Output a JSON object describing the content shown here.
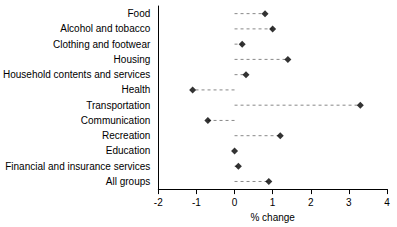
{
  "chart_data": {
    "type": "dot",
    "orientation": "horizontal",
    "categories": [
      "Food",
      "Alcohol and tobacco",
      "Clothing and footwear",
      "Housing",
      "Household contents and services",
      "Health",
      "Transportation",
      "Communication",
      "Recreation",
      "Education",
      "Financial and insurance services",
      "All groups"
    ],
    "values": [
      0.8,
      1.0,
      0.2,
      1.4,
      0.3,
      -1.1,
      3.3,
      -0.7,
      1.2,
      0.0,
      0.1,
      0.9
    ],
    "color": "#000000",
    "marker": "diamond",
    "line_style": "dashed",
    "xlabel": "% change",
    "xlim": [
      -2,
      4
    ],
    "xticks": [
      -2,
      -1,
      0,
      1,
      2,
      3,
      4
    ],
    "grid": false
  }
}
